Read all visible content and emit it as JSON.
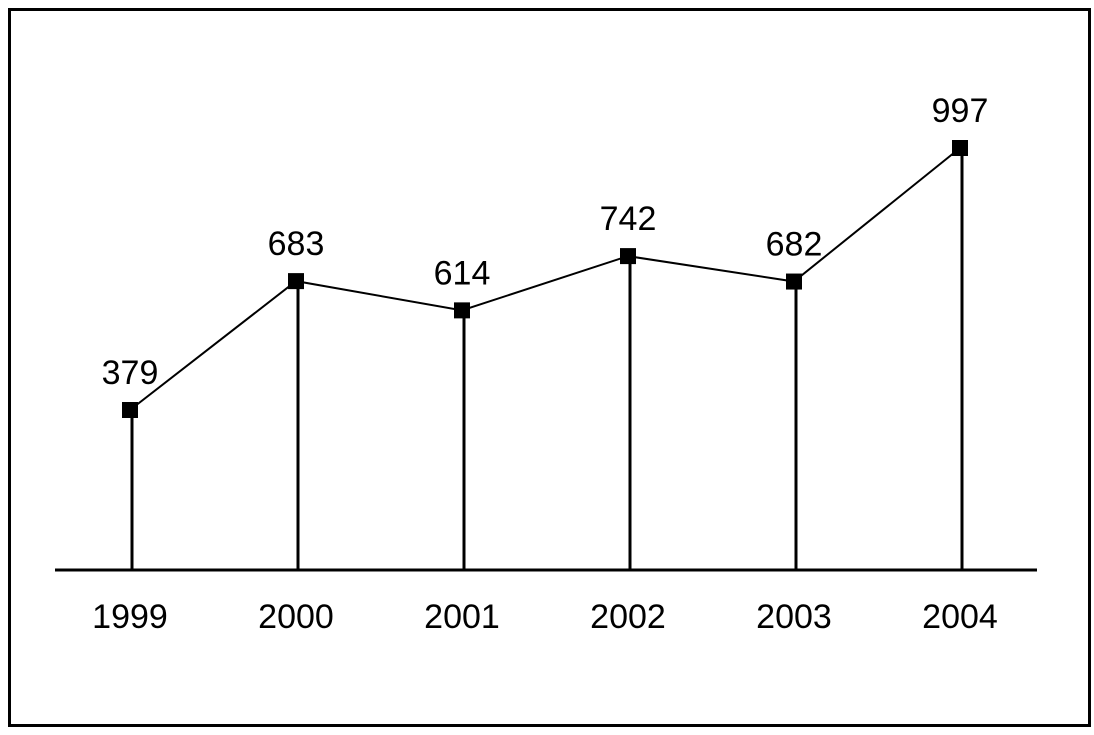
{
  "chart_data": {
    "type": "line",
    "title": "",
    "xlabel": "",
    "ylabel": "",
    "categories": [
      "1999",
      "2000",
      "2001",
      "2002",
      "2003",
      "2004"
    ],
    "series": [
      {
        "values": [
          379,
          683,
          614,
          742,
          682,
          997
        ],
        "color": "#000000",
        "marker": "square",
        "drop_lines": true,
        "data_labels": true
      }
    ],
    "grid": false,
    "legend": "none",
    "y_axis_visible": false
  }
}
